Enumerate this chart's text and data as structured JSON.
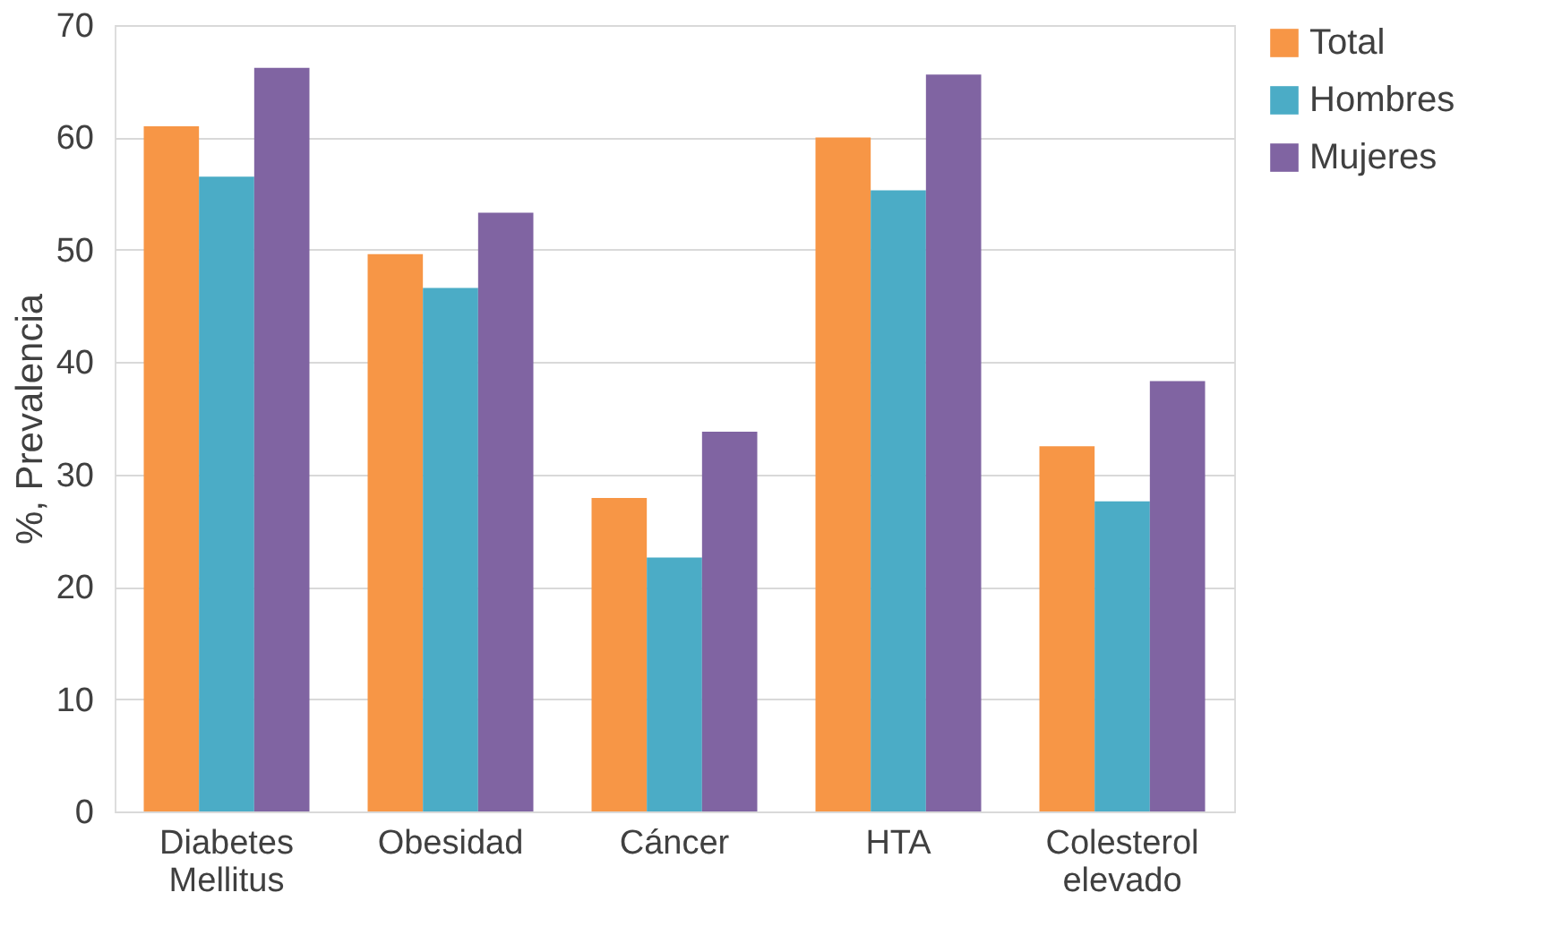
{
  "chart_data": {
    "type": "bar",
    "ylabel": "%, Prevalencia",
    "categories": [
      "Diabetes Mellitus",
      "Obesidad",
      "Cáncer",
      "HTA",
      "Colesterol elevado"
    ],
    "series": [
      {
        "name": "Total",
        "color": "#f79646",
        "values": [
          61,
          49.6,
          27.9,
          60,
          32.5
        ]
      },
      {
        "name": "Hombres",
        "color": "#4bacc6",
        "values": [
          56.5,
          46.6,
          22.6,
          55.3,
          27.6
        ]
      },
      {
        "name": "Mujeres",
        "color": "#8064a2",
        "values": [
          66.2,
          53.3,
          33.8,
          65.6,
          38.3
        ]
      }
    ],
    "ylim": [
      0,
      70
    ],
    "yticks": [
      0,
      10,
      20,
      30,
      40,
      50,
      60,
      70
    ],
    "grid": "y",
    "legend": "right"
  }
}
